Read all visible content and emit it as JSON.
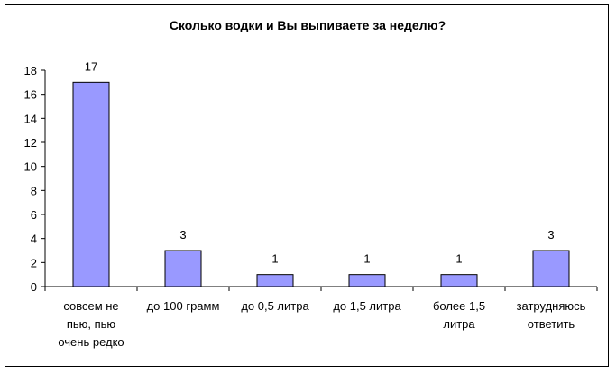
{
  "chart_data": {
    "type": "bar",
    "title": "Сколько водки и Вы выпиваете за неделю?",
    "xlabel": "",
    "ylabel": "",
    "ylim": [
      0,
      18
    ],
    "ytick_step": 2,
    "grid": false,
    "legend": "none",
    "categories": [
      [
        "совсем не",
        "пью, пью",
        "очень редко"
      ],
      [
        "до 100 грамм"
      ],
      [
        "до 0,5 литра"
      ],
      [
        "до 1,5 литра"
      ],
      [
        "более 1,5",
        "литра"
      ],
      [
        "затрудняюсь",
        "ответить"
      ]
    ],
    "values": [
      17,
      3,
      1,
      1,
      1,
      3
    ],
    "bar_color": "#9999ff",
    "bar_stroke": "#000000"
  }
}
